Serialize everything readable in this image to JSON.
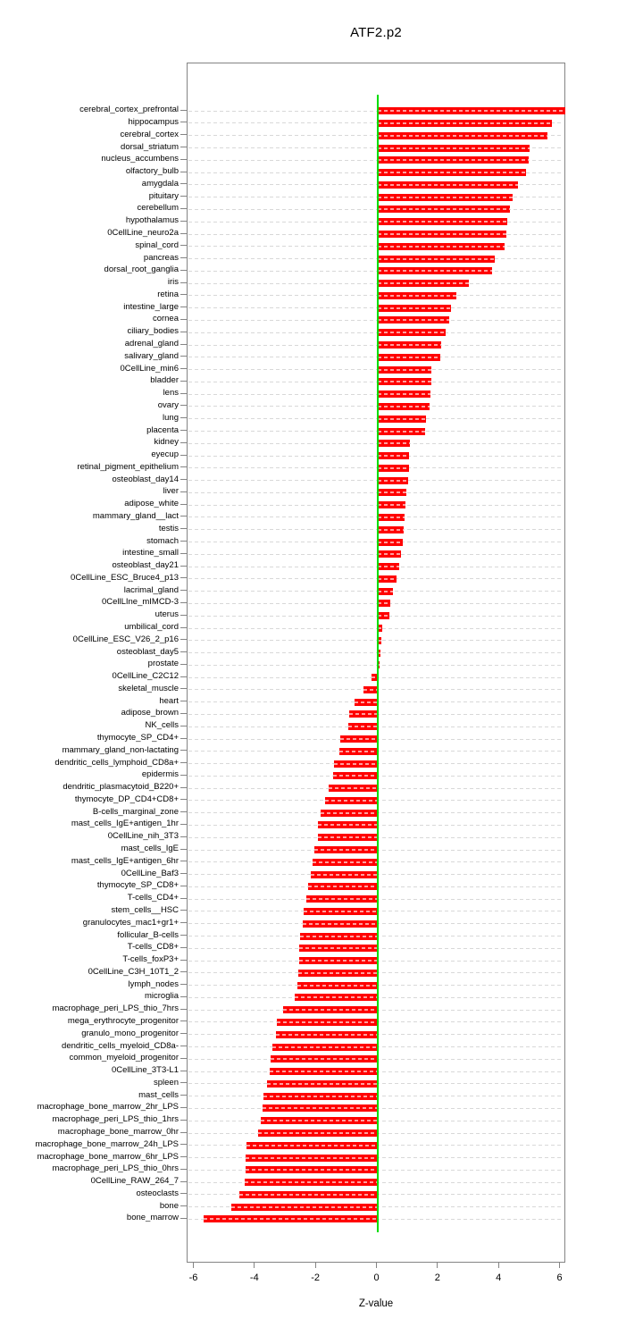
{
  "title": "ATF2.p2",
  "chart_data": {
    "type": "bar",
    "orientation": "horizontal",
    "title": "ATF2.p2",
    "xlabel": "Z-value",
    "xlim": [
      -6.2,
      6.2
    ],
    "xticks": [
      -6,
      -4,
      -2,
      0,
      2,
      4,
      6
    ],
    "grid": "dashed horizontal per category",
    "legend": "none",
    "bar_color": "#ff0000",
    "bar_dash_color": "#ffb3b3",
    "zero_line_color": "#00dd00",
    "gridline_color": "#d8d8d8",
    "axis_color": "#848484",
    "categories": [
      "cerebral_cortex_prefrontal",
      "hippocampus",
      "cerebral_cortex",
      "dorsal_striatum",
      "nucleus_accumbens",
      "olfactory_bulb",
      "amygdala",
      "pituitary",
      "cerebellum",
      "hypothalamus",
      "0CellLine_neuro2a",
      "spinal_cord",
      "pancreas",
      "dorsal_root_ganglia",
      "iris",
      "retina",
      "intestine_large",
      "cornea",
      "ciliary_bodies",
      "adrenal_gland",
      "salivary_gland",
      "0CellLine_min6",
      "bladder",
      "lens",
      "ovary",
      "lung",
      "placenta",
      "kidney",
      "eyecup",
      "retinal_pigment_epithelium",
      "osteoblast_day14",
      "liver",
      "adipose_white",
      "mammary_gland__lact",
      "testis",
      "stomach",
      "intestine_small",
      "osteoblast_day21",
      "0CellLine_ESC_Bruce4_p13",
      "lacrimal_gland",
      "0CellLIne_mIMCD-3",
      "uterus",
      "umbilical_cord",
      "0CellLine_ESC_V26_2_p16",
      "osteoblast_day5",
      "prostate",
      "0CellLine_C2C12",
      "skeletal_muscle",
      "heart",
      "adipose_brown",
      "NK_cells",
      "thymocyte_SP_CD4+",
      "mammary_gland_non-lactating",
      "dendritic_cells_lymphoid_CD8a+",
      "epidermis",
      "dendritic_plasmacytoid_B220+",
      "thymocyte_DP_CD4+CD8+",
      "B-cells_marginal_zone",
      "mast_cells_IgE+antigen_1hr",
      "0CellLine_nih_3T3",
      "mast_cells_IgE",
      "mast_cells_IgE+antigen_6hr",
      "0CellLine_Baf3",
      "thymocyte_SP_CD8+",
      "T-cells_CD4+",
      "stem_cells__HSC",
      "granulocytes_mac1+gr1+",
      "follicular_B-cells",
      "T-cells_CD8+",
      "T-cells_foxP3+",
      "0CellLine_C3H_10T1_2",
      "lymph_nodes",
      "microglia",
      "macrophage_peri_LPS_thio_7hrs",
      "mega_erythrocyte_progenitor",
      "granulo_mono_progenitor",
      "dendritic_cells_myeloid_CD8a-",
      "common_myeloid_progenitor",
      "0CellLine_3T3-L1",
      "spleen",
      "mast_cells",
      "macrophage_bone_marrow_2hr_LPS",
      "macrophage_peri_LPS_thio_1hrs",
      "macrophage_bone_marrow_0hr",
      "macrophage_bone_marrow_24h_LPS",
      "macrophage_bone_marrow_6hr_LPS",
      "macrophage_peri_LPS_thio_0hrs",
      "0CellLine_RAW_264_7",
      "osteoclasts",
      "bone",
      "bone_marrow"
    ],
    "values": [
      6.15,
      5.72,
      5.58,
      5.0,
      4.95,
      4.87,
      4.6,
      4.42,
      4.36,
      4.27,
      4.22,
      4.17,
      3.85,
      3.76,
      3.01,
      2.6,
      2.42,
      2.35,
      2.25,
      2.1,
      2.07,
      1.78,
      1.76,
      1.75,
      1.7,
      1.6,
      1.58,
      1.08,
      1.05,
      1.04,
      1.02,
      0.94,
      0.93,
      0.88,
      0.85,
      0.83,
      0.79,
      0.73,
      0.64,
      0.52,
      0.43,
      0.39,
      0.17,
      0.14,
      0.11,
      0.07,
      -0.19,
      -0.45,
      -0.74,
      -0.91,
      -0.96,
      -1.21,
      -1.23,
      -1.42,
      -1.45,
      -1.6,
      -1.71,
      -1.85,
      -1.94,
      -1.96,
      -2.07,
      -2.13,
      -2.19,
      -2.27,
      -2.32,
      -2.4,
      -2.43,
      -2.53,
      -2.55,
      -2.57,
      -2.6,
      -2.62,
      -2.71,
      -3.08,
      -3.29,
      -3.32,
      -3.45,
      -3.51,
      -3.54,
      -3.6,
      -3.72,
      -3.76,
      -3.83,
      -3.92,
      -4.3,
      -4.32,
      -4.33,
      -4.35,
      -4.51,
      -4.79,
      -5.68
    ]
  }
}
